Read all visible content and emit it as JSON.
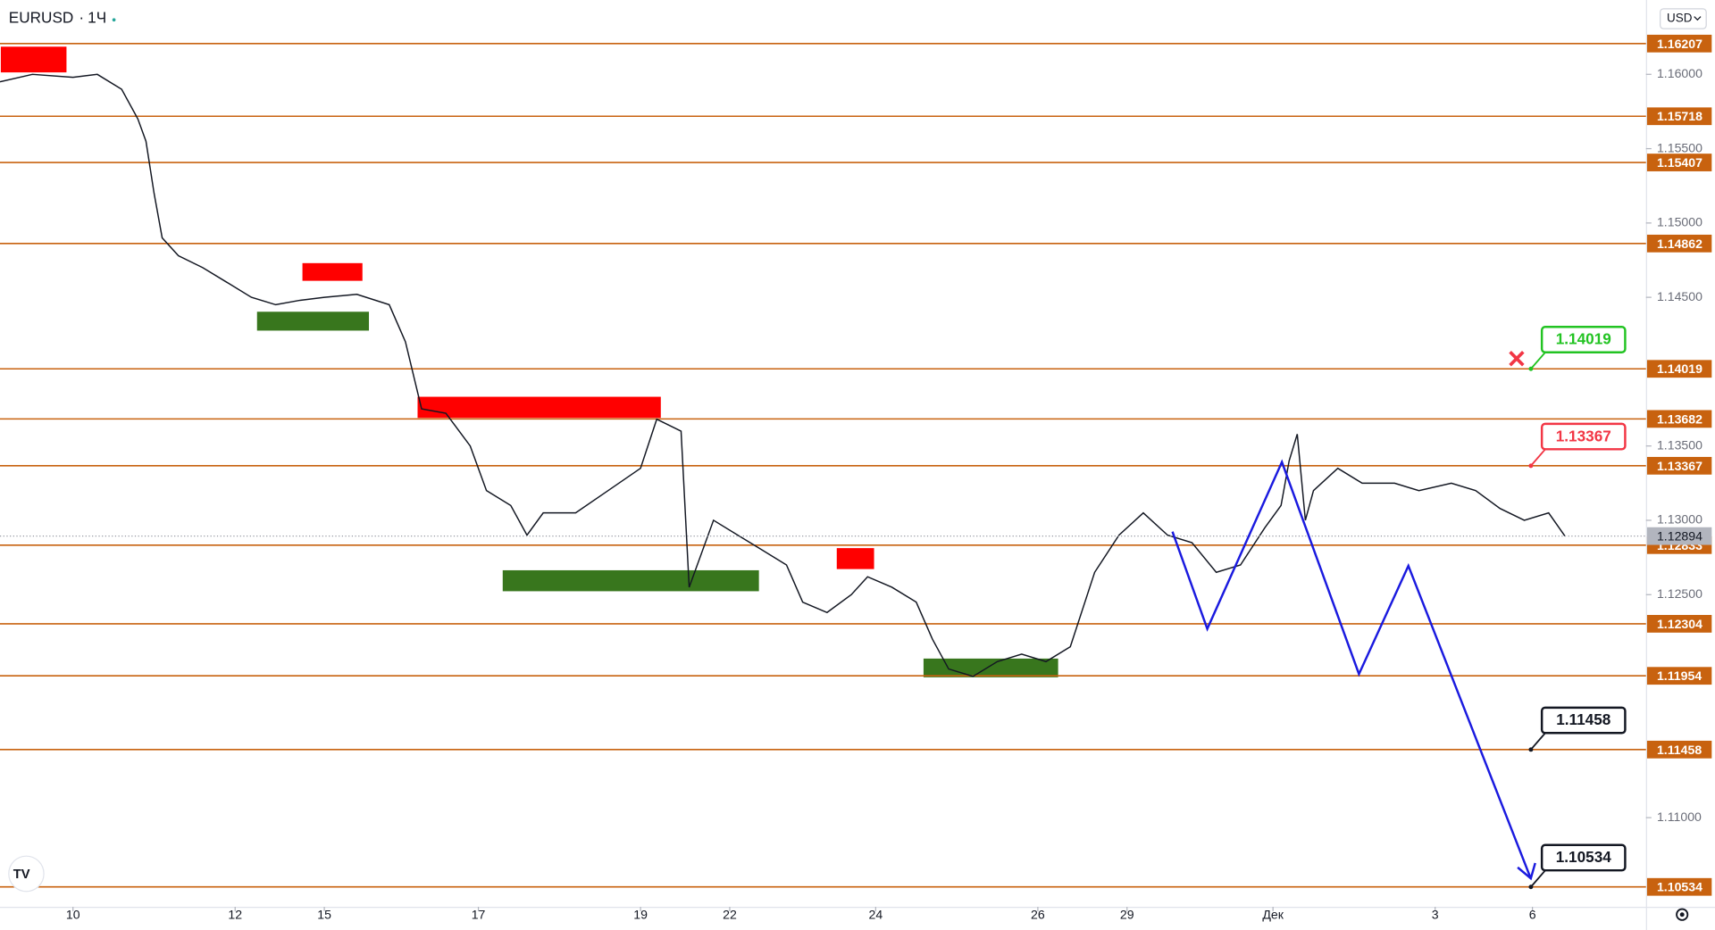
{
  "header": {
    "symbol": "EURUSD",
    "interval": "1Ч",
    "currency": "USD"
  },
  "chart_data": {
    "type": "line",
    "x": [
      -0.9,
      -0.5,
      0,
      0.3,
      0.6,
      0.8,
      0.9,
      1.0,
      1.1,
      1.3,
      1.6,
      1.9,
      2.2,
      2.5,
      2.8,
      3.1,
      3.5,
      3.9,
      4.1,
      4.3,
      4.6,
      4.9,
      5.1,
      5.4,
      5.6,
      5.8,
      6.2,
      6.6,
      7.0,
      7.2,
      7.5,
      7.6,
      7.9,
      8.2,
      8.5,
      8.8,
      9.0,
      9.3,
      9.6,
      9.8,
      10.1,
      10.4,
      10.6,
      10.8,
      11.1,
      11.4,
      11.7,
      12.0,
      12.3,
      12.6,
      12.9,
      13.2,
      13.5,
      13.8,
      14.1,
      14.4,
      14.7,
      14.9,
      15.0,
      15.1,
      15.2,
      15.3,
      15.6,
      15.9,
      16.3,
      16.6,
      17.0,
      17.3,
      17.6,
      17.9,
      18.2,
      18.4
    ],
    "series": [
      {
        "name": "EURUSD",
        "color": "#131722",
        "values": [
          1.1595,
          1.16,
          1.1598,
          1.16,
          1.159,
          1.157,
          1.1555,
          1.152,
          1.149,
          1.1478,
          1.147,
          1.146,
          1.145,
          1.1445,
          1.1448,
          1.145,
          1.1452,
          1.1445,
          1.142,
          1.1375,
          1.1372,
          1.135,
          1.132,
          1.131,
          1.129,
          1.1305,
          1.1305,
          1.132,
          1.1335,
          1.1368,
          1.136,
          1.1255,
          1.13,
          1.129,
          1.128,
          1.127,
          1.1245,
          1.1238,
          1.125,
          1.1262,
          1.1255,
          1.1245,
          1.122,
          1.12,
          1.1195,
          1.1205,
          1.121,
          1.1205,
          1.1215,
          1.1265,
          1.129,
          1.1305,
          1.129,
          1.1285,
          1.1265,
          1.127,
          1.1295,
          1.131,
          1.134,
          1.1358,
          1.13,
          1.132,
          1.1335,
          1.1325,
          1.1325,
          1.132,
          1.1325,
          1.132,
          1.1308,
          1.13,
          1.1305,
          1.12894
        ]
      }
    ],
    "xlim": [
      -0.9,
      19.4
    ],
    "ylim": [
      1.104,
      1.165
    ],
    "xticks": [
      {
        "value": 0,
        "label": "10"
      },
      {
        "value": 2,
        "label": "12"
      },
      {
        "value": 3.1,
        "label": "15"
      },
      {
        "value": 5,
        "label": "17"
      },
      {
        "value": 7,
        "label": "19"
      },
      {
        "value": 8.1,
        "label": "22"
      },
      {
        "value": 9.9,
        "label": "24"
      },
      {
        "value": 11.9,
        "label": "26"
      },
      {
        "value": 13,
        "label": "29"
      },
      {
        "value": 14.8,
        "label": "Дек"
      },
      {
        "value": 16.8,
        "label": "3"
      },
      {
        "value": 18,
        "label": "6"
      }
    ],
    "yticks": [
      {
        "value": 1.16,
        "label": "1.16000"
      },
      {
        "value": 1.155,
        "label": "1.15500"
      },
      {
        "value": 1.15,
        "label": "1.15000"
      },
      {
        "value": 1.145,
        "label": "1.14500"
      },
      {
        "value": 1.135,
        "label": "1.13500"
      },
      {
        "value": 1.13,
        "label": "1.13000"
      },
      {
        "value": 1.125,
        "label": "1.12500"
      },
      {
        "value": 1.11,
        "label": "1.11000"
      }
    ],
    "levels": [
      1.16207,
      1.15718,
      1.15407,
      1.14862,
      1.14019,
      1.13682,
      1.13367,
      1.12833,
      1.12304,
      1.11954,
      1.11458,
      1.10534
    ],
    "level_color": "#c8620f",
    "current_price": 1.12894,
    "callouts": [
      {
        "value": 1.14019,
        "color": "#22c322"
      },
      {
        "value": 1.13367,
        "color": "#f23645"
      },
      {
        "value": 1.11458,
        "color": "#131722"
      },
      {
        "value": 1.10534,
        "color": "#131722"
      }
    ],
    "zones": [
      {
        "x": [
          -0.89,
          -0.08
        ],
        "y": [
          1.16013,
          1.16186
        ],
        "color": "#ff0000"
      },
      {
        "x": [
          2.83,
          3.57
        ],
        "y": [
          1.14611,
          1.1473
        ],
        "color": "#ff0000"
      },
      {
        "x": [
          2.27,
          3.65
        ],
        "y": [
          1.14276,
          1.14403
        ],
        "color": "#38761d"
      },
      {
        "x": [
          4.25,
          7.25
        ],
        "y": [
          1.13689,
          1.13831
        ],
        "color": "#ff0000"
      },
      {
        "x": [
          5.3,
          8.46
        ],
        "y": [
          1.12523,
          1.12664
        ],
        "color": "#38761d"
      },
      {
        "x": [
          9.42,
          9.88
        ],
        "y": [
          1.12672,
          1.12813
        ],
        "color": "#ff0000"
      },
      {
        "x": [
          10.49,
          12.15
        ],
        "y": [
          1.11944,
          1.1207
        ],
        "color": "#38761d"
      }
    ],
    "projection": {
      "x": [
        13.56,
        13.99,
        14.91,
        15.86,
        16.47,
        17.98
      ],
      "y": [
        1.12924,
        1.1227,
        1.13392,
        1.11966,
        1.12694,
        1.10591
      ],
      "color": "#1a1adf"
    }
  }
}
